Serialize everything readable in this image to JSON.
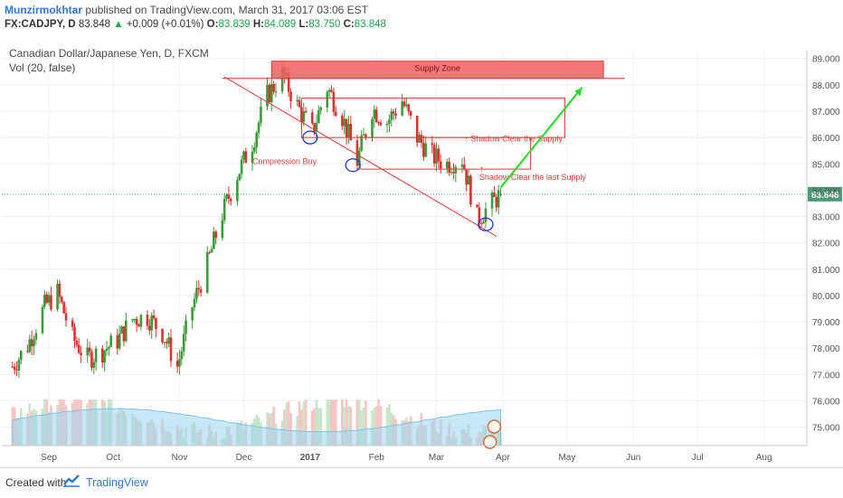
{
  "header": {
    "author": "Munzirmokhtar",
    "published_text": "published on TradingView.com, March 31, 2017 03:06 EST",
    "symbol": "FX:CADJPY, D",
    "last": "83.848",
    "change_arrow": "▲",
    "change": "+0.009 (+0.01%)",
    "o_label": "O:",
    "o_value": "83.839",
    "h_label": "H:",
    "h_value": "84.089",
    "l_label": "L:",
    "l_value": "83.750",
    "c_label": "C:",
    "c_value": "83.848"
  },
  "legend": {
    "title": "Canadian Dollar/Japanese Yen, D, FXCM",
    "vol": "Vol (20, false)"
  },
  "footer": {
    "created": "Created with",
    "brand": "TradingView"
  },
  "colors": {
    "up": "#3b9b3b",
    "down": "#e0312f",
    "accent": "#e53935",
    "arrow": "#22dd22",
    "vol_ma": "#9fd4ef"
  },
  "chart_data": {
    "type": "candlestick",
    "symbol": "CADJPY",
    "timeframe": "D",
    "ylim": [
      74.3,
      89.3
    ],
    "yticks": [
      "89.000",
      "88.000",
      "87.000",
      "86.000",
      "85.000",
      "84.000",
      "83.000",
      "82.000",
      "81.000",
      "80.000",
      "79.000",
      "78.000",
      "77.000",
      "76.000",
      "75.000"
    ],
    "xticks": [
      "Sep",
      "Oct",
      "Nov",
      "Dec",
      "2017",
      "Feb",
      "Mar",
      "Apr",
      "May",
      "Jun",
      "Jul",
      "Aug"
    ],
    "last_price_label": "83.848",
    "ohlc_points": [
      {
        "date": "2016-08-15",
        "close": 77.3
      },
      {
        "date": "2016-08-22",
        "close": 78.1
      },
      {
        "date": "2016-08-30",
        "close": 79.6
      },
      {
        "date": "2016-09-05",
        "close": 80.1
      },
      {
        "date": "2016-09-12",
        "close": 78.4
      },
      {
        "date": "2016-09-19",
        "close": 77.6
      },
      {
        "date": "2016-09-26",
        "close": 77.9
      },
      {
        "date": "2016-10-03",
        "close": 78.3
      },
      {
        "date": "2016-10-10",
        "close": 79.1
      },
      {
        "date": "2016-10-17",
        "close": 79.2
      },
      {
        "date": "2016-10-24",
        "close": 78.6
      },
      {
        "date": "2016-10-31",
        "close": 77.3
      },
      {
        "date": "2016-11-07",
        "close": 79.6
      },
      {
        "date": "2016-11-14",
        "close": 81.2
      },
      {
        "date": "2016-11-21",
        "close": 83.1
      },
      {
        "date": "2016-11-28",
        "close": 84.6
      },
      {
        "date": "2016-12-05",
        "close": 85.8
      },
      {
        "date": "2016-12-12",
        "close": 87.6
      },
      {
        "date": "2016-12-19",
        "close": 88.4
      },
      {
        "date": "2016-12-26",
        "close": 87.2
      },
      {
        "date": "2017-01-02",
        "close": 86.2
      },
      {
        "date": "2017-01-09",
        "close": 87.9
      },
      {
        "date": "2017-01-16",
        "close": 86.8
      },
      {
        "date": "2017-01-23",
        "close": 85.1
      },
      {
        "date": "2017-01-30",
        "close": 87.1
      },
      {
        "date": "2017-02-06",
        "close": 86.6
      },
      {
        "date": "2017-02-13",
        "close": 87.4
      },
      {
        "date": "2017-02-20",
        "close": 86.0
      },
      {
        "date": "2017-02-27",
        "close": 85.3
      },
      {
        "date": "2017-03-06",
        "close": 85.0
      },
      {
        "date": "2017-03-13",
        "close": 85.2
      },
      {
        "date": "2017-03-20",
        "close": 82.9
      },
      {
        "date": "2017-03-31",
        "close": 83.848
      }
    ],
    "annotations": {
      "supply_zone_label": "Supply Zone",
      "supply_zone": [
        88.25,
        88.9
      ],
      "box_upper": [
        86.0,
        87.5
      ],
      "box_lower": [
        84.8,
        86.0
      ],
      "label_shadow_supply": "Shadow Clear the Supply",
      "label_shadow_last": "Shadow Clear the last Supply",
      "label_compression": "Compression Buy",
      "target_arrow_to": 87.9
    }
  }
}
